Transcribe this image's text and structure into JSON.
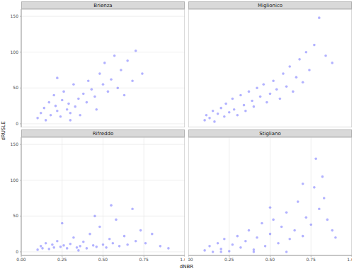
{
  "chart_data": {
    "type": "scatter",
    "xlabel": "dNBR",
    "ylabel": "dRUSLE",
    "color": "#0000ff",
    "grid": true,
    "xlim": [
      0,
      1
    ],
    "ylim": [
      -5,
      160
    ],
    "xticks": [
      {
        "value": 0,
        "label": "0.00"
      },
      {
        "value": 0.25,
        "label": "0.25"
      },
      {
        "value": 0.5,
        "label": "0.50"
      },
      {
        "value": 0.75,
        "label": "0.75"
      },
      {
        "value": 1,
        "label": "1.00"
      }
    ],
    "yticks": [
      0,
      50,
      100,
      150
    ],
    "panels": [
      {
        "title": "Brienza",
        "x": [
          0.1,
          0.12,
          0.14,
          0.15,
          0.17,
          0.18,
          0.2,
          0.21,
          0.22,
          0.24,
          0.25,
          0.26,
          0.28,
          0.29,
          0.3,
          0.32,
          0.33,
          0.35,
          0.36,
          0.38,
          0.4,
          0.41,
          0.43,
          0.45,
          0.46,
          0.48,
          0.5,
          0.51,
          0.53,
          0.55,
          0.57,
          0.59,
          0.61,
          0.63,
          0.65,
          0.68,
          0.7,
          0.74,
          0.22,
          0.3
        ],
        "values": [
          8,
          15,
          22,
          5,
          30,
          12,
          40,
          25,
          18,
          10,
          33,
          45,
          20,
          28,
          15,
          55,
          24,
          35,
          12,
          42,
          30,
          60,
          48,
          38,
          20,
          70,
          55,
          85,
          45,
          62,
          95,
          50,
          75,
          40,
          88,
          60,
          102,
          70,
          64,
          5
        ]
      },
      {
        "title": "Miglionico",
        "x": [
          0.1,
          0.11,
          0.13,
          0.15,
          0.16,
          0.18,
          0.2,
          0.22,
          0.23,
          0.25,
          0.27,
          0.28,
          0.3,
          0.32,
          0.34,
          0.35,
          0.37,
          0.39,
          0.4,
          0.42,
          0.44,
          0.46,
          0.48,
          0.5,
          0.52,
          0.54,
          0.56,
          0.58,
          0.6,
          0.62,
          0.64,
          0.66,
          0.68,
          0.7,
          0.72,
          0.74,
          0.77,
          0.8,
          0.84,
          0.88
        ],
        "values": [
          5,
          12,
          8,
          18,
          3,
          14,
          22,
          10,
          28,
          16,
          35,
          20,
          12,
          40,
          26,
          18,
          45,
          32,
          24,
          50,
          38,
          55,
          30,
          42,
          60,
          48,
          35,
          70,
          52,
          80,
          45,
          65,
          90,
          58,
          100,
          75,
          110,
          148,
          95,
          85
        ]
      },
      {
        "title": "Rifreddo",
        "x": [
          0.1,
          0.12,
          0.13,
          0.15,
          0.17,
          0.19,
          0.2,
          0.22,
          0.24,
          0.26,
          0.28,
          0.3,
          0.32,
          0.34,
          0.36,
          0.38,
          0.4,
          0.42,
          0.44,
          0.46,
          0.48,
          0.5,
          0.52,
          0.54,
          0.56,
          0.58,
          0.6,
          0.63,
          0.65,
          0.68,
          0.7,
          0.73,
          0.76,
          0.8,
          0.85,
          0.9,
          0.25,
          0.45,
          0.35,
          0.55
        ],
        "values": [
          3,
          8,
          5,
          12,
          4,
          10,
          6,
          15,
          7,
          9,
          5,
          11,
          20,
          6,
          8,
          14,
          5,
          25,
          9,
          7,
          35,
          10,
          6,
          18,
          12,
          45,
          8,
          22,
          10,
          60,
          15,
          30,
          12,
          25,
          8,
          5,
          40,
          50,
          2,
          65
        ]
      },
      {
        "title": "Stigliano",
        "x": [
          0.1,
          0.13,
          0.15,
          0.18,
          0.2,
          0.22,
          0.25,
          0.27,
          0.3,
          0.32,
          0.35,
          0.37,
          0.4,
          0.42,
          0.45,
          0.47,
          0.5,
          0.52,
          0.55,
          0.57,
          0.6,
          0.62,
          0.65,
          0.67,
          0.7,
          0.72,
          0.75,
          0.77,
          0.8,
          0.82,
          0.85,
          0.88,
          0.9,
          0.2,
          0.4,
          0.6,
          0.78,
          0.83,
          0.5,
          0.7
        ],
        "values": [
          2,
          8,
          0,
          12,
          4,
          18,
          1,
          10,
          22,
          6,
          15,
          30,
          3,
          20,
          40,
          8,
          25,
          45,
          12,
          35,
          55,
          18,
          30,
          70,
          22,
          48,
          38,
          90,
          60,
          105,
          45,
          30,
          20,
          0,
          0,
          0,
          130,
          75,
          62,
          95
        ]
      }
    ]
  }
}
